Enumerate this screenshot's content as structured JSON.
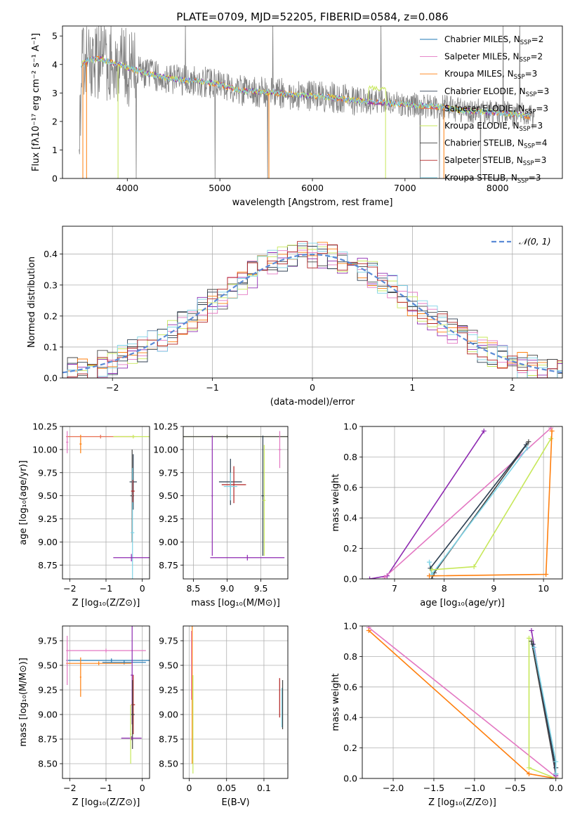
{
  "figure_title": "PLATE=0709, MJD=52205, FIBERID=0584, z=0.086",
  "colors": {
    "chabrier_miles": "#1f77b4",
    "salpeter_miles": "#e377c2",
    "kroupa_miles": "#ff7f0e",
    "chabrier_elodie": "#2c3e50",
    "salpeter_elodie": "#e76f51",
    "kroupa_elodie": "#8e2ab1",
    "chabrier_stelib": "#444444",
    "salpeter_stelib": "#b22222",
    "kroupa_stelib": "#7fd3e6",
    "yellowgreen": "#c7e85a",
    "data_gray": "#808080",
    "gaussian": "#5b8bd6"
  },
  "chart_data": [
    {
      "id": "spectrum",
      "type": "line",
      "title": "PLATE=0709, MJD=52205, FIBERID=0584, z=0.086",
      "xlabel": "wavelength [Angstrom, rest frame]",
      "ylabel": "Flux [fλ10⁻¹⁷ erg cm⁻² s⁻¹ A⁻¹]",
      "xlim": [
        3300,
        8700
      ],
      "ylim": [
        0,
        5.35
      ],
      "xticks": [
        4000,
        5000,
        6000,
        7000,
        8000
      ],
      "yticks": [
        0,
        1,
        2,
        3,
        4,
        5
      ],
      "grid": false,
      "legend_position": "top-right",
      "legend": [
        {
          "label": "Chabrier MILES, N",
          "sub": "SSP",
          "suffix": "=2",
          "color_key": "chabrier_miles"
        },
        {
          "label": "Salpeter MILES, N",
          "sub": "SSP",
          "suffix": "=2",
          "color_key": "salpeter_miles"
        },
        {
          "label": "Kroupa MILES, N",
          "sub": "SSP",
          "suffix": "=3",
          "color_key": "kroupa_miles"
        },
        {
          "label": "Chabrier ELODIE, N",
          "sub": "SSP",
          "suffix": "=3",
          "color_key": "chabrier_elodie"
        },
        {
          "label": "Salpeter ELODIE, N",
          "sub": "SSP",
          "suffix": "=3",
          "color_key": "salpeter_elodie"
        },
        {
          "label": "Kroupa ELODIE, N",
          "sub": "SSP",
          "suffix": "=3",
          "color_key": "yellowgreen"
        },
        {
          "label": "Chabrier STELIB, N",
          "sub": "SSP",
          "suffix": "=4",
          "color_key": "chabrier_stelib"
        },
        {
          "label": "Salpeter STELIB, N",
          "sub": "SSP",
          "suffix": "=3",
          "color_key": "salpeter_stelib"
        },
        {
          "label": "Kroupa STELIB, N",
          "sub": "SSP",
          "suffix": "=3",
          "color_key": "kroupa_stelib"
        }
      ],
      "continuum": {
        "x": [
          3500,
          3600,
          3700,
          3800,
          3900,
          4000,
          4200,
          4400,
          4600,
          4800,
          5000,
          5200,
          5400,
          5600,
          5800,
          6000,
          6200,
          6400,
          6600,
          6800,
          7000,
          7200,
          7400,
          7600,
          7800,
          8000,
          8200,
          8400
        ],
        "y": [
          4.0,
          4.15,
          4.2,
          4.1,
          4.0,
          3.9,
          3.7,
          3.55,
          3.45,
          3.4,
          3.3,
          3.1,
          3.05,
          3.0,
          2.95,
          2.9,
          2.85,
          2.75,
          2.7,
          2.65,
          2.6,
          2.55,
          2.5,
          2.4,
          2.35,
          2.3,
          2.25,
          2.15
        ]
      }
    },
    {
      "id": "residuals",
      "type": "line",
      "xlabel": "(data-model)/error",
      "ylabel": "Normed distribution",
      "xlim": [
        -2.5,
        2.5
      ],
      "ylim": [
        0,
        0.49
      ],
      "xticks": [
        -2,
        -1,
        0,
        1,
        2
      ],
      "yticks": [
        0.0,
        0.1,
        0.2,
        0.3,
        0.4
      ],
      "grid": true,
      "legend_position": "top-right",
      "legend": [
        {
          "label": "𝒩(0, 1)",
          "color_key": "gaussian"
        }
      ],
      "gaussian": {
        "mean": 0,
        "sigma": 1
      }
    },
    {
      "id": "age_vs_Z",
      "type": "scatter",
      "xlabel": "Z [log₁₀(Z/Z⊙)]",
      "ylabel": "age  [log₁₀(age/yr)]",
      "xlim": [
        -2.2,
        0.2
      ],
      "ylim": [
        8.6,
        10.25
      ],
      "xticks": [
        -2,
        -1,
        0
      ],
      "yticks": [
        8.75,
        9.0,
        9.25,
        9.5,
        9.75,
        10.0,
        10.25
      ],
      "grid": true,
      "points": [
        {
          "x": -1.15,
          "y": 10.14,
          "xerr": 0.95,
          "yerr": 0.02,
          "color_key": "salpeter_elodie"
        },
        {
          "x": -0.25,
          "y": 10.14,
          "xerr": 0.55,
          "yerr": 0.02,
          "color_key": "yellowgreen"
        },
        {
          "x": -2.07,
          "y": 10.08,
          "xerr": 0.03,
          "yerr": 0.12,
          "color_key": "salpeter_miles"
        },
        {
          "x": -1.7,
          "y": 10.06,
          "xerr": 0.03,
          "yerr": 0.1,
          "color_key": "kroupa_miles"
        },
        {
          "x": -0.25,
          "y": 9.65,
          "xerr": 0.1,
          "yerr": 0.3,
          "color_key": "chabrier_elodie"
        },
        {
          "x": -0.28,
          "y": 9.5,
          "xerr": 0.05,
          "yerr": 0.5,
          "color_key": "chabrier_stelib"
        },
        {
          "x": -0.27,
          "y": 9.1,
          "xerr": 0.05,
          "yerr": 0.7,
          "color_key": "kroupa_stelib"
        },
        {
          "x": -0.26,
          "y": 9.55,
          "xerr": 0.05,
          "yerr": 0.12,
          "color_key": "salpeter_stelib"
        },
        {
          "x": -0.3,
          "y": 8.83,
          "xerr": 0.5,
          "yerr": 0.04,
          "color_key": "kroupa_elodie"
        }
      ]
    },
    {
      "id": "age_vs_mass",
      "type": "scatter",
      "xlabel": "mass [log₁₀(M/M⊙)]",
      "ylabel": "",
      "xlim": [
        8.35,
        9.9
      ],
      "ylim": [
        8.6,
        10.25
      ],
      "xticks": [
        8.5,
        9.0,
        9.5
      ],
      "yticks": [
        8.75,
        9.0,
        9.25,
        9.5,
        9.75,
        10.0,
        10.25
      ],
      "grid": true,
      "points": [
        {
          "x": 9.0,
          "y": 10.14,
          "xerr": 1.0,
          "yerr": 0.02,
          "color_key": "yellowgreen"
        },
        {
          "x": 9.0,
          "y": 10.14,
          "xerr": 0.9,
          "yerr": 0.02,
          "color_key": "chabrier_stelib"
        },
        {
          "x": 9.53,
          "y": 9.5,
          "xerr": 0.02,
          "yerr": 0.65,
          "color_key": "chabrier_elodie"
        },
        {
          "x": 9.55,
          "y": 9.45,
          "xerr": 0.02,
          "yerr": 0.6,
          "color_key": "yellowgreen"
        },
        {
          "x": 9.78,
          "y": 10.0,
          "xerr": 0.02,
          "yerr": 0.2,
          "color_key": "salpeter_miles"
        },
        {
          "x": 9.05,
          "y": 9.65,
          "xerr": 0.17,
          "yerr": 0.25,
          "color_key": "chabrier_elodie"
        },
        {
          "x": 9.1,
          "y": 9.62,
          "xerr": 0.18,
          "yerr": 0.2,
          "color_key": "salpeter_stelib"
        },
        {
          "x": 9.05,
          "y": 9.6,
          "xerr": 0.1,
          "yerr": 0.15,
          "color_key": "kroupa_stelib"
        },
        {
          "x": 9.3,
          "y": 8.83,
          "xerr": 0.55,
          "yerr": 0.03,
          "color_key": "kroupa_elodie"
        },
        {
          "x": 8.78,
          "y": 9.5,
          "xerr": 0.01,
          "yerr": 0.65,
          "color_key": "kroupa_elodie"
        }
      ]
    },
    {
      "id": "weight_vs_age",
      "type": "line",
      "xlabel": "age  [log₁₀(age/yr)]",
      "ylabel": "mass weight",
      "xlim": [
        6.35,
        10.38
      ],
      "ylim": [
        0,
        1.0
      ],
      "xticks": [
        7,
        8,
        9,
        10
      ],
      "yticks": [
        0.0,
        0.2,
        0.4,
        0.6,
        0.8,
        1.0
      ],
      "grid": true,
      "series": [
        {
          "color_key": "kroupa_elodie",
          "x": [
            6.5,
            6.85,
            8.8
          ],
          "y": [
            0.0,
            0.02,
            0.97
          ]
        },
        {
          "color_key": "salpeter_miles",
          "x": [
            6.8,
            10.15
          ],
          "y": [
            0.01,
            0.99
          ]
        },
        {
          "color_key": "chabrier_stelib",
          "x": [
            7.75,
            7.8,
            9.7
          ],
          "y": [
            0.0,
            0.04,
            0.9
          ]
        },
        {
          "color_key": "kroupa_stelib",
          "x": [
            7.7,
            7.75,
            9.68
          ],
          "y": [
            0.11,
            0.03,
            0.86
          ]
        },
        {
          "color_key": "chabrier_elodie",
          "x": [
            7.72,
            9.65
          ],
          "y": [
            0.07,
            0.88
          ]
        },
        {
          "color_key": "yellowgreen",
          "x": [
            7.75,
            8.6,
            10.15
          ],
          "y": [
            0.06,
            0.08,
            0.92
          ]
        },
        {
          "color_key": "kroupa_miles",
          "x": [
            7.7,
            10.05,
            10.17
          ],
          "y": [
            0.02,
            0.03,
            0.97
          ]
        }
      ]
    },
    {
      "id": "mass_vs_Z",
      "type": "scatter",
      "xlabel": "Z [log₁₀(Z/Z⊙)]",
      "ylabel": "mass [log₁₀(M/M⊙)]",
      "xlim": [
        -2.2,
        0.2
      ],
      "ylim": [
        8.35,
        9.9
      ],
      "xticks": [
        -2,
        -1,
        0
      ],
      "yticks": [
        8.5,
        8.75,
        9.0,
        9.25,
        9.5,
        9.75
      ],
      "grid": true,
      "points": [
        {
          "x": -1.0,
          "y": 9.65,
          "xerr": 1.1,
          "yerr": 0.02,
          "color_key": "salpeter_miles"
        },
        {
          "x": -0.85,
          "y": 9.55,
          "xerr": 1.25,
          "yerr": 0.02,
          "color_key": "chabrier_miles"
        },
        {
          "x": -0.5,
          "y": 9.53,
          "xerr": 0.6,
          "yerr": 0.02,
          "color_key": "chabrier_miles"
        },
        {
          "x": -1.2,
          "y": 9.52,
          "xerr": 0.9,
          "yerr": 0.02,
          "color_key": "kroupa_miles"
        },
        {
          "x": -2.07,
          "y": 9.55,
          "xerr": 0.02,
          "yerr": 0.25,
          "color_key": "salpeter_miles"
        },
        {
          "x": -1.7,
          "y": 9.38,
          "xerr": 0.02,
          "yerr": 0.2,
          "color_key": "kroupa_miles"
        },
        {
          "x": -0.28,
          "y": 9.4,
          "xerr": 0.04,
          "yerr": 0.5,
          "color_key": "kroupa_elodie"
        },
        {
          "x": -0.25,
          "y": 9.1,
          "xerr": 0.05,
          "yerr": 0.3,
          "color_key": "salpeter_stelib"
        },
        {
          "x": -0.27,
          "y": 9.0,
          "xerr": 0.06,
          "yerr": 0.35,
          "color_key": "chabrier_stelib"
        },
        {
          "x": -0.3,
          "y": 8.76,
          "xerr": 0.28,
          "yerr": 0.02,
          "color_key": "kroupa_elodie"
        },
        {
          "x": -0.32,
          "y": 8.8,
          "xerr": 0.02,
          "yerr": 0.3,
          "color_key": "yellowgreen"
        }
      ]
    },
    {
      "id": "mass_vs_ebv",
      "type": "scatter",
      "xlabel": "E(B-V)",
      "ylabel": "",
      "xlim": [
        -0.008,
        0.132
      ],
      "ylim": [
        8.35,
        9.9
      ],
      "xticks": [
        0.0,
        0.05,
        0.1
      ],
      "yticks": [
        8.5,
        8.75,
        9.0,
        9.25,
        9.5,
        9.75
      ],
      "grid": true,
      "points": [
        {
          "x": 0.003,
          "y": 9.5,
          "xerr": 0.0,
          "yerr": 0.35,
          "color_key": "salpeter_miles"
        },
        {
          "x": 0.004,
          "y": 9.2,
          "xerr": 0.0,
          "yerr": 0.7,
          "color_key": "kroupa_miles"
        },
        {
          "x": 0.005,
          "y": 8.9,
          "xerr": 0.0,
          "yerr": 0.5,
          "color_key": "yellowgreen"
        },
        {
          "x": 0.121,
          "y": 9.17,
          "xerr": 0.0,
          "yerr": 0.2,
          "color_key": "salpeter_stelib"
        },
        {
          "x": 0.124,
          "y": 9.07,
          "xerr": 0.0,
          "yerr": 0.2,
          "color_key": "kroupa_stelib"
        },
        {
          "x": 0.125,
          "y": 9.1,
          "xerr": 0.0,
          "yerr": 0.25,
          "color_key": "chabrier_stelib"
        }
      ]
    },
    {
      "id": "weight_vs_Z",
      "type": "line",
      "xlabel": "Z [log₁₀(Z/Z⊙)]",
      "ylabel": "mass weight",
      "xlim": [
        -2.38,
        0.08
      ],
      "ylim": [
        0,
        1.0
      ],
      "xticks": [
        -2.0,
        -1.5,
        -1.0,
        -0.5,
        0.0
      ],
      "yticks": [
        0.0,
        0.2,
        0.4,
        0.6,
        0.8,
        1.0
      ],
      "grid": true,
      "series": [
        {
          "color_key": "salpeter_miles",
          "x": [
            -2.3,
            0.0
          ],
          "y": [
            0.99,
            0.01
          ]
        },
        {
          "color_key": "kroupa_miles",
          "x": [
            -2.3,
            -0.33,
            0.0
          ],
          "y": [
            0.97,
            0.03,
            0.0
          ]
        },
        {
          "color_key": "yellowgreen",
          "x": [
            -0.33,
            -0.33,
            0.0
          ],
          "y": [
            0.92,
            0.07,
            0.0
          ]
        },
        {
          "color_key": "kroupa_elodie",
          "x": [
            -0.3,
            0.0
          ],
          "y": [
            0.97,
            0.02
          ]
        },
        {
          "color_key": "chabrier_stelib",
          "x": [
            -0.3,
            0.0
          ],
          "y": [
            0.9,
            0.03
          ]
        },
        {
          "color_key": "chabrier_elodie",
          "x": [
            -0.28,
            0.0
          ],
          "y": [
            0.88,
            0.07
          ]
        },
        {
          "color_key": "kroupa_stelib",
          "x": [
            -0.27,
            0.0,
            0.0
          ],
          "y": [
            0.86,
            0.11,
            0.03
          ]
        }
      ]
    }
  ]
}
